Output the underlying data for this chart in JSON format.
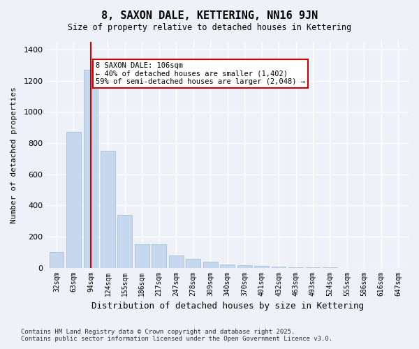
{
  "title": "8, SAXON DALE, KETTERING, NN16 9JN",
  "subtitle": "Size of property relative to detached houses in Kettering",
  "xlabel": "Distribution of detached houses by size in Kettering",
  "ylabel": "Number of detached properties",
  "bar_color": "#c5d8ed",
  "bar_edge_color": "#a0b8d0",
  "background_color": "#eef2f8",
  "grid_color": "#ffffff",
  "categories": [
    "32sqm",
    "63sqm",
    "94sqm",
    "124sqm",
    "155sqm",
    "186sqm",
    "217sqm",
    "247sqm",
    "278sqm",
    "309sqm",
    "340sqm",
    "370sqm",
    "401sqm",
    "432sqm",
    "463sqm",
    "493sqm",
    "524sqm",
    "555sqm",
    "586sqm",
    "616sqm",
    "647sqm"
  ],
  "values": [
    100,
    870,
    1270,
    750,
    340,
    150,
    150,
    80,
    55,
    40,
    20,
    15,
    10,
    5,
    2,
    1,
    1,
    0,
    0,
    0,
    0
  ],
  "vline_x": 2,
  "vline_color": "#cc0000",
  "annotation_text": "8 SAXON DALE: 106sqm\n← 40% of detached houses are smaller (1,402)\n59% of semi-detached houses are larger (2,048) →",
  "annotation_box_color": "#ffffff",
  "annotation_box_edge": "#cc0000",
  "ylim": [
    0,
    1450
  ],
  "yticks": [
    0,
    200,
    400,
    600,
    800,
    1000,
    1200,
    1400
  ],
  "footer_line1": "Contains HM Land Registry data © Crown copyright and database right 2025.",
  "footer_line2": "Contains public sector information licensed under the Open Government Licence v3.0."
}
